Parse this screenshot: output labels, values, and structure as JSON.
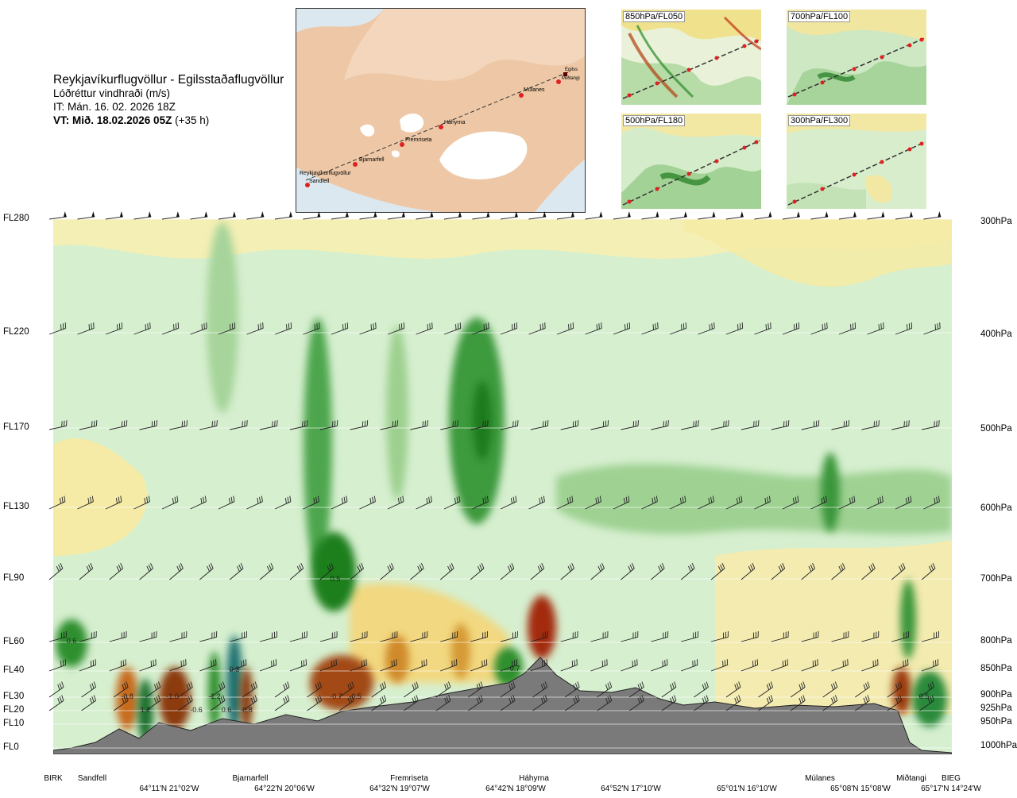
{
  "header": {
    "title": "Reykjavíkurflugvöllur - Egilsstaðaflugvöllur",
    "subtitle": "Lóðréttur vindhraði (m/s)",
    "it": "IT: Mán. 16. 02. 2026 18Z",
    "vt_bold": "VT: Mið. 18.02.2026 05Z",
    "vt_rest": " (+35 h)"
  },
  "map": {
    "points": [
      "Reykjavíkurflugvöllur",
      "Sandfell",
      "Bjarnarfell",
      "Fremriseta",
      "Háhyrna",
      "Múlanes",
      "Miðtangi",
      "Egilss"
    ]
  },
  "panels": [
    {
      "label": "850hPa/FL050"
    },
    {
      "label": "700hPa/FL100"
    },
    {
      "label": "500hPa/FL180"
    },
    {
      "label": "300hPa/FL300"
    }
  ],
  "colors": {
    "strong_up": "#228b22",
    "up": "#6fb86f",
    "weak_up": "#a9d8a2",
    "neutral": "#d9f0d3",
    "weak_down": "#f5ecaa",
    "down": "#e0a020",
    "strong_down": "#8b3a0e",
    "terrain": "#7a7a7a"
  },
  "chart_data": {
    "type": "heatmap",
    "title": "Lóðréttur vindhraði (m/s)",
    "left_axis_levels": [
      "FL280",
      "FL220",
      "FL170",
      "FL130",
      "FL90",
      "FL60",
      "FL40",
      "FL30",
      "FL20",
      "FL10",
      "FL0"
    ],
    "right_axis_levels": [
      "300hPa",
      "400hPa",
      "500hPa",
      "600hPa",
      "700hPa",
      "800hPa",
      "850hPa",
      "900hPa",
      "925hPa",
      "950hPa",
      "1000hPa"
    ],
    "waypoints": [
      "BIRK",
      "Sandfell",
      "Bjarnarfell",
      "Fremriseta",
      "Háhyrna",
      "Múlanes",
      "Miðtangi",
      "BIEG"
    ],
    "coordinates": [
      "64°11'N 21°02'W",
      "64°22'N 20°06'W",
      "64°32'N 19°07'W",
      "64°42'N 18°09'W",
      "64°52'N 17°10'W",
      "65°01'N 16°10'W",
      "65°08'N 15°08'W",
      "65°17'N 14°24'W"
    ],
    "value_labels": [
      "0.6",
      "-0.8",
      "1.2",
      "-1.0",
      "-0.6",
      "0.3",
      "-1.2",
      "0.6",
      "-0.8",
      "0.5",
      "-0.7",
      "-0.5",
      "0.7",
      "0.5"
    ],
    "terrain_peak_near": "Háhyrna"
  }
}
